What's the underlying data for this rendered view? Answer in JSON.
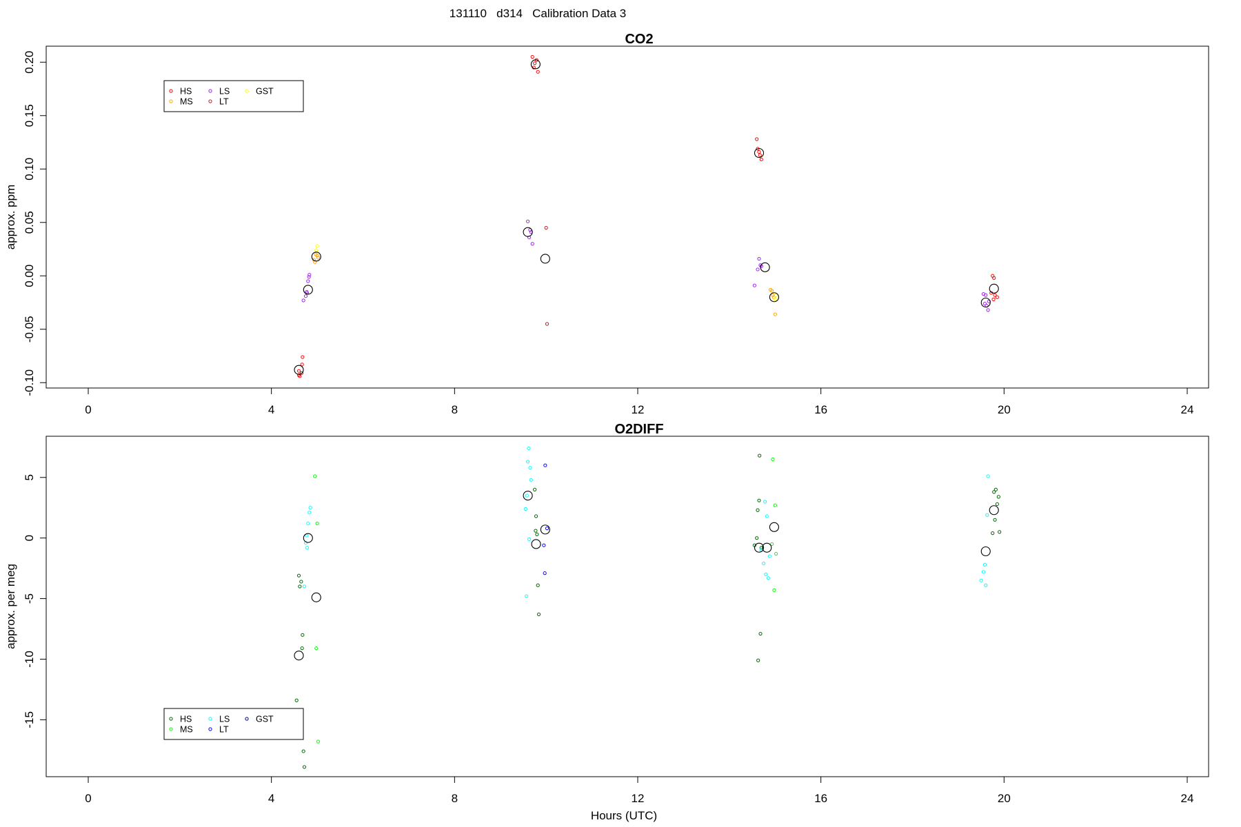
{
  "figure_title": "131110   d314   Calibration Data 3",
  "chart_data": [
    {
      "type": "scatter",
      "title": "CO2",
      "xlabel": "",
      "ylabel": "approx. ppm",
      "xlim": [
        0,
        24
      ],
      "ylim": [
        -0.105,
        0.215
      ],
      "x_ticks": [
        "0",
        "4",
        "8",
        "12",
        "16",
        "20",
        "24"
      ],
      "y_ticks": [
        "-0.10",
        "-0.05",
        "0.00",
        "0.05",
        "0.10",
        "0.15",
        "0.20"
      ],
      "grid": false,
      "legend_position": "top-left",
      "legend": [
        {
          "name": "HS",
          "color": "#ff0000"
        },
        {
          "name": "MS",
          "color": "#ffa500"
        },
        {
          "name": "LS",
          "color": "#a020f0"
        },
        {
          "name": "LT",
          "color": "#b22222"
        },
        {
          "name": "GST",
          "color": "#ffff00"
        }
      ],
      "series": [
        {
          "name": "HS",
          "color": "#ff0000",
          "points": [
            [
              4.6,
              -0.093
            ],
            [
              4.62,
              -0.094
            ],
            [
              4.66,
              -0.091
            ],
            [
              4.67,
              -0.083
            ],
            [
              4.68,
              -0.076
            ],
            [
              4.6,
              -0.089
            ],
            [
              9.7,
              0.205
            ],
            [
              9.75,
              0.199
            ],
            [
              9.82,
              0.191
            ],
            [
              9.73,
              0.195
            ],
            [
              9.79,
              0.202
            ],
            [
              14.6,
              0.128
            ],
            [
              14.65,
              0.116
            ],
            [
              14.67,
              0.113
            ],
            [
              14.7,
              0.109
            ],
            [
              14.62,
              0.119
            ],
            [
              19.75,
              0.0
            ],
            [
              19.78,
              -0.002
            ],
            [
              19.8,
              -0.018
            ],
            [
              19.85,
              -0.02
            ],
            [
              19.77,
              -0.022
            ],
            [
              19.72,
              -0.016
            ]
          ]
        },
        {
          "name": "MS",
          "color": "#ffa500",
          "points": [
            [
              4.93,
              0.015
            ],
            [
              4.97,
              0.02
            ],
            [
              5.0,
              0.019
            ],
            [
              4.95,
              0.013
            ],
            [
              5.02,
              0.017
            ],
            [
              14.9,
              -0.013
            ],
            [
              14.95,
              -0.018
            ],
            [
              15.0,
              -0.036
            ],
            [
              14.93,
              -0.014
            ],
            [
              14.97,
              -0.02
            ]
          ]
        },
        {
          "name": "LS",
          "color": "#a020f0",
          "points": [
            [
              4.7,
              -0.023
            ],
            [
              4.75,
              -0.019
            ],
            [
              4.78,
              -0.016
            ],
            [
              4.8,
              -0.005
            ],
            [
              4.82,
              -0.001
            ],
            [
              4.83,
              0.001
            ],
            [
              4.77,
              -0.015
            ],
            [
              9.6,
              0.051
            ],
            [
              9.63,
              0.036
            ],
            [
              9.67,
              0.041
            ],
            [
              9.7,
              0.03
            ],
            [
              9.65,
              0.043
            ],
            [
              14.55,
              -0.009
            ],
            [
              14.62,
              0.006
            ],
            [
              14.65,
              0.016
            ],
            [
              14.68,
              0.01
            ],
            [
              14.7,
              0.009
            ],
            [
              19.55,
              -0.017
            ],
            [
              19.6,
              -0.018
            ],
            [
              19.62,
              -0.028
            ],
            [
              19.65,
              -0.032
            ],
            [
              19.67,
              -0.024
            ],
            [
              19.58,
              -0.026
            ]
          ]
        },
        {
          "name": "LT",
          "color": "#b22222",
          "points": [
            [
              10.0,
              0.045
            ],
            [
              10.02,
              -0.045
            ]
          ]
        },
        {
          "name": "GST",
          "color": "#ffff00",
          "points": [
            [
              4.98,
              0.024
            ],
            [
              5.0,
              0.028
            ],
            [
              15.0,
              -0.022
            ],
            [
              15.02,
              -0.018
            ]
          ]
        },
        {
          "name": "mean",
          "color": "#000000",
          "marker": "large",
          "points": [
            [
              4.6,
              -0.088
            ],
            [
              4.8,
              -0.013
            ],
            [
              4.98,
              0.018
            ],
            [
              9.6,
              0.041
            ],
            [
              9.77,
              0.198
            ],
            [
              9.98,
              0.016
            ],
            [
              14.65,
              0.115
            ],
            [
              14.78,
              0.008
            ],
            [
              14.98,
              -0.02
            ],
            [
              19.6,
              -0.025
            ],
            [
              19.78,
              -0.012
            ]
          ]
        }
      ]
    },
    {
      "type": "scatter",
      "title": "O2DIFF",
      "xlabel": "Hours (UTC)",
      "ylabel": "approx. per meg",
      "xlim": [
        0,
        24
      ],
      "ylim": [
        -19.7,
        8.4
      ],
      "x_ticks": [
        "0",
        "4",
        "8",
        "12",
        "16",
        "20",
        "24"
      ],
      "y_ticks": [
        "-15",
        "-10",
        "-5",
        "0",
        "5"
      ],
      "grid": false,
      "legend_position": "bottom-left",
      "legend": [
        {
          "name": "HS",
          "color": "#006400"
        },
        {
          "name": "MS",
          "color": "#00ff00"
        },
        {
          "name": "LS",
          "color": "#00ffff"
        },
        {
          "name": "LT",
          "color": "#0000ff"
        },
        {
          "name": "GST",
          "color": "#00008b"
        }
      ],
      "series": [
        {
          "name": "HS",
          "color": "#006400",
          "points": [
            [
              4.55,
              -13.4
            ],
            [
              4.6,
              -3.1
            ],
            [
              4.62,
              -4.0
            ],
            [
              4.65,
              -3.6
            ],
            [
              4.67,
              -9.1
            ],
            [
              4.68,
              -8.0
            ],
            [
              4.7,
              -17.6
            ],
            [
              4.72,
              -18.9
            ],
            [
              9.75,
              4.0
            ],
            [
              9.78,
              1.8
            ],
            [
              9.8,
              0.3
            ],
            [
              9.82,
              -3.9
            ],
            [
              9.84,
              -6.3
            ],
            [
              9.77,
              0.6
            ],
            [
              14.55,
              -0.6
            ],
            [
              14.6,
              0.0
            ],
            [
              14.62,
              2.3
            ],
            [
              14.65,
              3.1
            ],
            [
              14.66,
              6.8
            ],
            [
              14.68,
              -7.9
            ],
            [
              14.63,
              -10.1
            ],
            [
              14.7,
              -0.8
            ],
            [
              19.75,
              0.4
            ],
            [
              19.8,
              1.5
            ],
            [
              19.85,
              2.8
            ],
            [
              19.88,
              3.4
            ],
            [
              19.82,
              4.0
            ],
            [
              19.78,
              3.8
            ],
            [
              19.9,
              0.5
            ]
          ]
        },
        {
          "name": "MS",
          "color": "#00ff00",
          "points": [
            [
              4.95,
              5.1
            ],
            [
              5.0,
              1.2
            ],
            [
              4.98,
              -9.1
            ],
            [
              5.02,
              -16.8
            ],
            [
              14.95,
              6.5
            ],
            [
              15.0,
              2.7
            ],
            [
              15.02,
              -1.3
            ],
            [
              14.98,
              -4.3
            ],
            [
              14.93,
              -0.5
            ]
          ]
        },
        {
          "name": "LS",
          "color": "#00ffff",
          "points": [
            [
              4.72,
              -4.0
            ],
            [
              4.75,
              -0.4
            ],
            [
              4.78,
              -0.8
            ],
            [
              4.8,
              1.2
            ],
            [
              4.83,
              2.1
            ],
            [
              4.85,
              2.5
            ],
            [
              4.77,
              0.2
            ],
            [
              9.55,
              2.4
            ],
            [
              9.58,
              3.5
            ],
            [
              9.6,
              6.3
            ],
            [
              9.62,
              7.4
            ],
            [
              9.65,
              5.8
            ],
            [
              9.67,
              4.8
            ],
            [
              9.63,
              -0.1
            ],
            [
              9.57,
              -4.8
            ],
            [
              14.7,
              -1.0
            ],
            [
              14.75,
              -2.1
            ],
            [
              14.8,
              -3.0
            ],
            [
              14.85,
              -3.3
            ],
            [
              14.82,
              1.8
            ],
            [
              14.78,
              3.0
            ],
            [
              14.88,
              -1.5
            ],
            [
              19.5,
              -3.5
            ],
            [
              19.55,
              -2.8
            ],
            [
              19.58,
              -2.2
            ],
            [
              19.6,
              -3.9
            ],
            [
              19.63,
              1.9
            ],
            [
              19.65,
              5.1
            ]
          ]
        },
        {
          "name": "LT",
          "color": "#0000ff",
          "points": [
            [
              9.98,
              6.0
            ],
            [
              9.95,
              -0.6
            ],
            [
              9.97,
              -2.9
            ],
            [
              10.02,
              0.8
            ]
          ]
        },
        {
          "name": "GST",
          "color": "#00008b",
          "points": []
        },
        {
          "name": "mean",
          "color": "#000000",
          "marker": "large",
          "points": [
            [
              4.6,
              -9.7
            ],
            [
              4.8,
              0.0
            ],
            [
              4.98,
              -4.9
            ],
            [
              9.6,
              3.5
            ],
            [
              9.78,
              -0.5
            ],
            [
              9.98,
              0.7
            ],
            [
              14.65,
              -0.8
            ],
            [
              14.82,
              -0.8
            ],
            [
              14.98,
              0.9
            ],
            [
              19.6,
              -1.1
            ],
            [
              19.78,
              2.3
            ]
          ]
        }
      ]
    }
  ]
}
